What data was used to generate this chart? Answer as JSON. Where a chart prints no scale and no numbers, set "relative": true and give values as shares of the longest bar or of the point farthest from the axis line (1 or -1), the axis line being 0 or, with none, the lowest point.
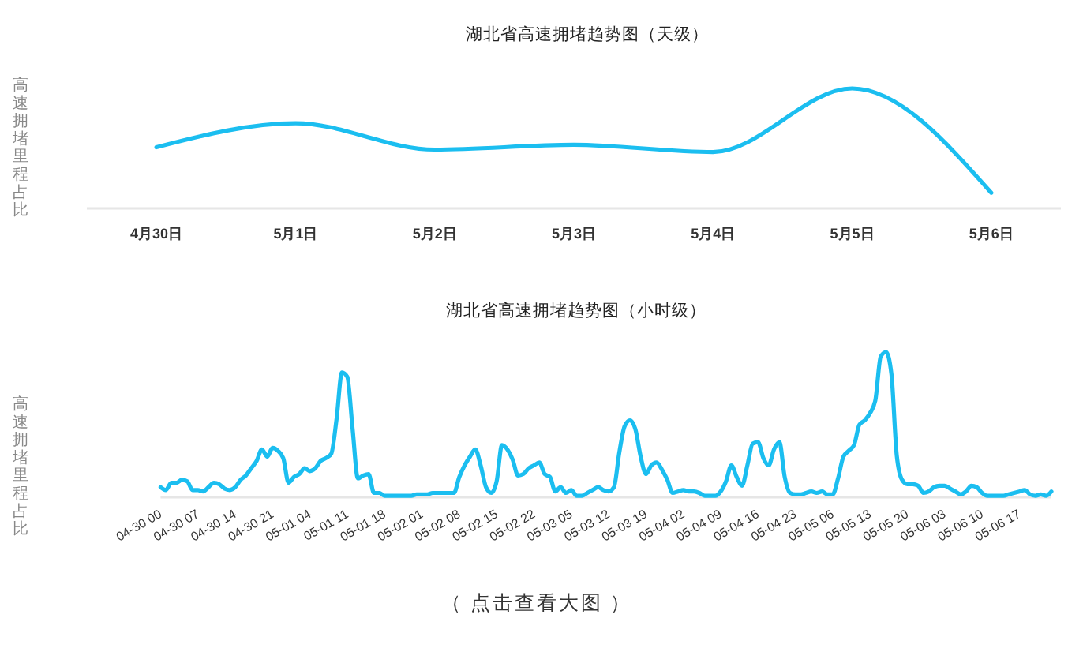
{
  "chart_data": [
    {
      "type": "line",
      "title": "湖北省高速拥堵趋势图（天级）",
      "ylabel": "高速拥堵里程占比",
      "relative": true,
      "categories": [
        "4月30日",
        "5月1日",
        "5月2日",
        "5月3日",
        "5月4日",
        "5月5日",
        "5月6日"
      ],
      "series": [
        {
          "color": "#1bbef0",
          "values": [
            0.51,
            0.71,
            0.49,
            0.53,
            0.47,
            1,
            0.13
          ]
        }
      ]
    },
    {
      "type": "line",
      "title": "湖北省高速拥堵趋势图（小时级）",
      "ylabel": "高速拥堵里程占比",
      "relative": true,
      "categories": [
        "04-30 00",
        null,
        null,
        null,
        null,
        null,
        null,
        "04-30 07",
        null,
        null,
        null,
        null,
        null,
        null,
        "04-30 14",
        null,
        null,
        null,
        null,
        null,
        null,
        "04-30 21",
        null,
        null,
        null,
        null,
        null,
        null,
        "05-01 04",
        null,
        null,
        null,
        null,
        null,
        null,
        "05-01 11",
        null,
        null,
        null,
        null,
        null,
        null,
        "05-01 18",
        null,
        null,
        null,
        null,
        null,
        null,
        "05-02 01",
        null,
        null,
        null,
        null,
        null,
        null,
        "05-02 08",
        null,
        null,
        null,
        null,
        null,
        null,
        "05-02 15",
        null,
        null,
        null,
        null,
        null,
        null,
        "05-02 22",
        null,
        null,
        null,
        null,
        null,
        null,
        "05-03 05",
        null,
        null,
        null,
        null,
        null,
        null,
        "05-03 12",
        null,
        null,
        null,
        null,
        null,
        null,
        "05-03 19",
        null,
        null,
        null,
        null,
        null,
        null,
        "05-04 02",
        null,
        null,
        null,
        null,
        null,
        null,
        "05-04 09",
        null,
        null,
        null,
        null,
        null,
        null,
        "05-04 16",
        null,
        null,
        null,
        null,
        null,
        null,
        "05-04 23",
        null,
        null,
        null,
        null,
        null,
        null,
        "05-05 06",
        null,
        null,
        null,
        null,
        null,
        null,
        "05-05 13",
        null,
        null,
        null,
        null,
        null,
        null,
        "05-05 20",
        null,
        null,
        null,
        null,
        null,
        null,
        "05-06 03",
        null,
        null,
        null,
        null,
        null,
        null,
        "05-06 10",
        null,
        null,
        null,
        null,
        null,
        null,
        "05-06 17",
        null,
        null,
        null,
        null,
        null,
        null
      ],
      "series": [
        {
          "color": "#1bbef0",
          "values": [
            0.07,
            0.05,
            0.1,
            0.1,
            0.12,
            0.11,
            0.05,
            0.05,
            0.04,
            0.07,
            0.1,
            0.09,
            0.06,
            0.05,
            0.07,
            0.12,
            0.15,
            0.2,
            0.25,
            0.33,
            0.28,
            0.34,
            0.32,
            0.27,
            0.1,
            0.14,
            0.16,
            0.2,
            0.18,
            0.2,
            0.25,
            0.27,
            0.3,
            0.54,
            0.86,
            0.83,
            0.47,
            0.13,
            0.15,
            0.16,
            0.03,
            0.03,
            0.01,
            0.01,
            0.01,
            0.01,
            0.01,
            0.01,
            0.02,
            0.02,
            0.02,
            0.03,
            0.03,
            0.03,
            0.03,
            0.03,
            0.14,
            0.22,
            0.28,
            0.33,
            0.22,
            0.07,
            0.03,
            0.11,
            0.36,
            0.33,
            0.26,
            0.15,
            0.16,
            0.2,
            0.22,
            0.24,
            0.16,
            0.14,
            0.04,
            0.07,
            0.03,
            0.05,
            0.01,
            0.01,
            0.03,
            0.05,
            0.07,
            0.05,
            0.04,
            0.07,
            0.31,
            0.49,
            0.53,
            0.47,
            0.28,
            0.16,
            0.22,
            0.24,
            0.19,
            0.12,
            0.03,
            0.04,
            0.05,
            0.04,
            0.04,
            0.03,
            0.01,
            0.01,
            0.01,
            0.04,
            0.11,
            0.22,
            0.14,
            0.08,
            0.22,
            0.37,
            0.38,
            0.27,
            0.22,
            0.33,
            0.38,
            0.14,
            0.03,
            0.02,
            0.02,
            0.03,
            0.04,
            0.03,
            0.04,
            0.02,
            0.02,
            0.13,
            0.28,
            0.32,
            0.36,
            0.5,
            0.53,
            0.58,
            0.67,
            0.97,
            1,
            0.85,
            0.29,
            0.12,
            0.09,
            0.09,
            0.08,
            0.03,
            0.04,
            0.07,
            0.08,
            0.08,
            0.06,
            0.04,
            0.02,
            0.04,
            0.08,
            0.07,
            0.03,
            0.01,
            0.01,
            0.01,
            0.01,
            0.02,
            0.03,
            0.04,
            0.05,
            0.02,
            0.01,
            0.02,
            0.01,
            0.04
          ]
        }
      ],
      "annotations": [
        "（ 点击查看大图 ）"
      ]
    }
  ]
}
